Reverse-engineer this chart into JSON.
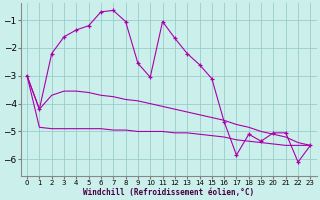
{
  "xlabel": "Windchill (Refroidissement éolien,°C)",
  "bg_color": "#cBf0eb",
  "grid_color": "#99cccc",
  "line_color": "#aa00aa",
  "xlim": [
    -0.5,
    23.5
  ],
  "ylim": [
    -6.6,
    -0.4
  ],
  "yticks": [
    -6,
    -5,
    -4,
    -3,
    -2,
    -1
  ],
  "xticks": [
    0,
    1,
    2,
    3,
    4,
    5,
    6,
    7,
    8,
    9,
    10,
    11,
    12,
    13,
    14,
    15,
    16,
    17,
    18,
    19,
    20,
    21,
    22,
    23
  ],
  "series1": [
    [
      0,
      -3.0
    ],
    [
      1,
      -4.2
    ],
    [
      2,
      -2.2
    ],
    [
      3,
      -1.6
    ],
    [
      4,
      -1.35
    ],
    [
      5,
      -1.2
    ],
    [
      6,
      -0.7
    ],
    [
      7,
      -0.65
    ],
    [
      8,
      -1.05
    ],
    [
      9,
      -2.55
    ],
    [
      10,
      -3.05
    ],
    [
      11,
      -1.05
    ],
    [
      12,
      -1.65
    ],
    [
      13,
      -2.2
    ],
    [
      14,
      -2.6
    ],
    [
      15,
      -3.1
    ],
    [
      16,
      -4.65
    ],
    [
      17,
      -5.85
    ],
    [
      18,
      -5.1
    ],
    [
      19,
      -5.35
    ],
    [
      20,
      -5.05
    ],
    [
      21,
      -5.05
    ],
    [
      22,
      -6.1
    ],
    [
      23,
      -5.5
    ]
  ],
  "series2": [
    [
      0,
      -3.0
    ],
    [
      1,
      -4.2
    ],
    [
      2,
      -3.7
    ],
    [
      3,
      -3.55
    ],
    [
      4,
      -3.55
    ],
    [
      5,
      -3.6
    ],
    [
      6,
      -3.7
    ],
    [
      7,
      -3.75
    ],
    [
      8,
      -3.85
    ],
    [
      9,
      -3.9
    ],
    [
      10,
      -4.0
    ],
    [
      11,
      -4.1
    ],
    [
      12,
      -4.2
    ],
    [
      13,
      -4.3
    ],
    [
      14,
      -4.4
    ],
    [
      15,
      -4.5
    ],
    [
      16,
      -4.6
    ],
    [
      17,
      -4.75
    ],
    [
      18,
      -4.85
    ],
    [
      19,
      -5.0
    ],
    [
      20,
      -5.1
    ],
    [
      21,
      -5.2
    ],
    [
      22,
      -5.4
    ],
    [
      23,
      -5.5
    ]
  ],
  "series3": [
    [
      0,
      -3.0
    ],
    [
      1,
      -4.85
    ],
    [
      2,
      -4.9
    ],
    [
      3,
      -4.9
    ],
    [
      4,
      -4.9
    ],
    [
      5,
      -4.9
    ],
    [
      6,
      -4.9
    ],
    [
      7,
      -4.95
    ],
    [
      8,
      -4.95
    ],
    [
      9,
      -5.0
    ],
    [
      10,
      -5.0
    ],
    [
      11,
      -5.0
    ],
    [
      12,
      -5.05
    ],
    [
      13,
      -5.05
    ],
    [
      14,
      -5.1
    ],
    [
      15,
      -5.15
    ],
    [
      16,
      -5.2
    ],
    [
      17,
      -5.3
    ],
    [
      18,
      -5.35
    ],
    [
      19,
      -5.4
    ],
    [
      20,
      -5.45
    ],
    [
      21,
      -5.5
    ],
    [
      22,
      -5.5
    ],
    [
      23,
      -5.5
    ]
  ]
}
